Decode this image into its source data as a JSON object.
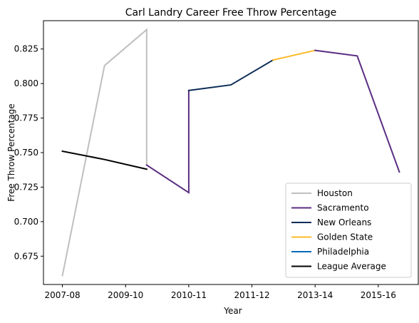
{
  "chart_data": {
    "type": "line",
    "title": "Carl Landry Career Free Throw Percentage",
    "xlabel": "Year",
    "ylabel": "Free Throw Percentage",
    "xlim": [
      -0.45,
      8.45
    ],
    "ylim": [
      0.6545,
      0.8455
    ],
    "x_ticks": [
      {
        "pos": 0,
        "label": "2007-08"
      },
      {
        "pos": 1.5,
        "label": "2009-10"
      },
      {
        "pos": 3,
        "label": "2010-11"
      },
      {
        "pos": 4.5,
        "label": "2011-12"
      },
      {
        "pos": 6,
        "label": "2013-14"
      },
      {
        "pos": 7.5,
        "label": "2015-16"
      }
    ],
    "y_ticks": [
      {
        "value": 0.675,
        "label": "0.675"
      },
      {
        "value": 0.7,
        "label": "0.700"
      },
      {
        "value": 0.725,
        "label": "0.725"
      },
      {
        "value": 0.75,
        "label": "0.750"
      },
      {
        "value": 0.775,
        "label": "0.775"
      },
      {
        "value": 0.8,
        "label": "0.800"
      },
      {
        "value": 0.825,
        "label": "0.825"
      }
    ],
    "series": [
      {
        "name": "Houston",
        "color": "#bfbfbf",
        "points": [
          [
            0,
            0.661
          ],
          [
            1,
            0.813
          ],
          [
            2,
            0.839
          ],
          [
            2,
            0.742
          ]
        ]
      },
      {
        "name": "Sacramento",
        "color": "#5a2d81",
        "points": [
          [
            2,
            0.741
          ],
          [
            3,
            0.721
          ],
          [
            3,
            0.795
          ]
        ]
      },
      {
        "name": "New Orleans",
        "color": "#0c2c56",
        "points": [
          [
            3,
            0.795
          ],
          [
            4,
            0.799
          ],
          [
            5,
            0.817
          ]
        ]
      },
      {
        "name": "Golden State",
        "color": "#fdb927",
        "points": [
          [
            5,
            0.817
          ],
          [
            6,
            0.824
          ]
        ]
      },
      {
        "name": "Philadelphia",
        "color": "#006bb6",
        "points": []
      },
      {
        "name": "League Average",
        "color": "#000000",
        "points": [
          [
            0,
            0.751
          ],
          [
            1,
            0.745
          ],
          [
            2,
            0.738
          ]
        ]
      },
      {
        "name": "Sacramento",
        "color": "#5a2d81",
        "legend": false,
        "points": [
          [
            6,
            0.824
          ],
          [
            7,
            0.82
          ],
          [
            8,
            0.736
          ]
        ]
      }
    ],
    "legend_position": "lower right"
  }
}
